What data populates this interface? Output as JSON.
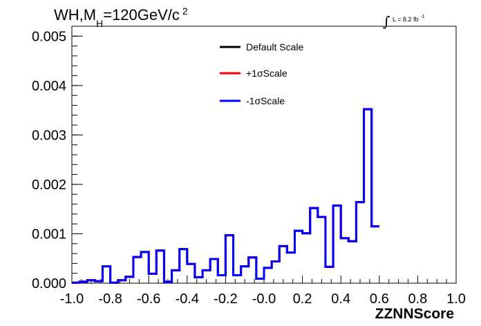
{
  "chart_data": {
    "type": "line",
    "title": {
      "main": "WH,M",
      "sub": "H",
      "rest": "=120GeV/c",
      "sup": "2"
    },
    "luminosity": {
      "integral_symbol": "∫",
      "text": "L = 8.2 fb",
      "sup": "-1"
    },
    "xlabel": "ZZNNScore",
    "ylabel": "",
    "xlim": [
      -1.0,
      1.0
    ],
    "ylim": [
      0.0,
      0.0052
    ],
    "x_ticks": [
      "-1.0",
      "-0.8",
      "-0.6",
      "-0.4",
      "-0.2",
      "-0.0",
      "0.2",
      "0.4",
      "0.6",
      "0.8",
      "1.0"
    ],
    "y_ticks": [
      "0.000",
      "0.001",
      "0.002",
      "0.003",
      "0.004",
      "0.005"
    ],
    "bin_edges_start": -1.0,
    "bin_width": 0.04,
    "series": [
      {
        "name": "Default Scale",
        "color": "#000000",
        "values": [
          1e-05,
          3e-05,
          6e-05,
          4e-05,
          0.00034,
          1e-05,
          6e-05,
          0.00013,
          0.00053,
          0.00063,
          0.00019,
          0.00066,
          3e-05,
          0.00026,
          0.00069,
          0.00039,
          0.00012,
          0.00026,
          0.00049,
          0.00016,
          0.00097,
          0.00016,
          0.00034,
          0.00052,
          9e-05,
          0.00031,
          0.00044,
          0.00075,
          0.00062,
          0.00106,
          0.00101,
          0.00152,
          0.00134,
          0.00033,
          0.00157,
          0.00091,
          0.00085,
          0.00164,
          0.00352,
          0.00115
        ]
      },
      {
        "name": "+1σScale",
        "color": "#ff0000",
        "values": [
          1e-05,
          3e-05,
          6e-05,
          4e-05,
          0.00034,
          1e-05,
          6e-05,
          0.00013,
          0.00053,
          0.00063,
          0.00019,
          0.00066,
          3e-05,
          0.00026,
          0.00069,
          0.00039,
          0.00012,
          0.00026,
          0.00049,
          0.00016,
          0.00097,
          0.00016,
          0.00034,
          0.00052,
          9e-05,
          0.00031,
          0.00044,
          0.00075,
          0.00062,
          0.00106,
          0.00101,
          0.00152,
          0.00134,
          0.00033,
          0.00157,
          0.00091,
          0.00085,
          0.00164,
          0.00352,
          0.00115
        ]
      },
      {
        "name": "-1σScale",
        "color": "#0000ff",
        "values": [
          1e-05,
          3e-05,
          6e-05,
          4e-05,
          0.00034,
          1e-05,
          6e-05,
          0.00013,
          0.00053,
          0.00063,
          0.00019,
          0.00066,
          3e-05,
          0.00026,
          0.00069,
          0.00039,
          0.00012,
          0.00026,
          0.00049,
          0.00016,
          0.00097,
          0.00016,
          0.00034,
          0.00052,
          9e-05,
          0.00031,
          0.00044,
          0.00075,
          0.00062,
          0.00106,
          0.00101,
          0.00152,
          0.00134,
          0.00033,
          0.00157,
          0.00091,
          0.00085,
          0.00164,
          0.00352,
          0.00115
        ]
      }
    ],
    "legend_position": "top-center",
    "grid": false
  }
}
